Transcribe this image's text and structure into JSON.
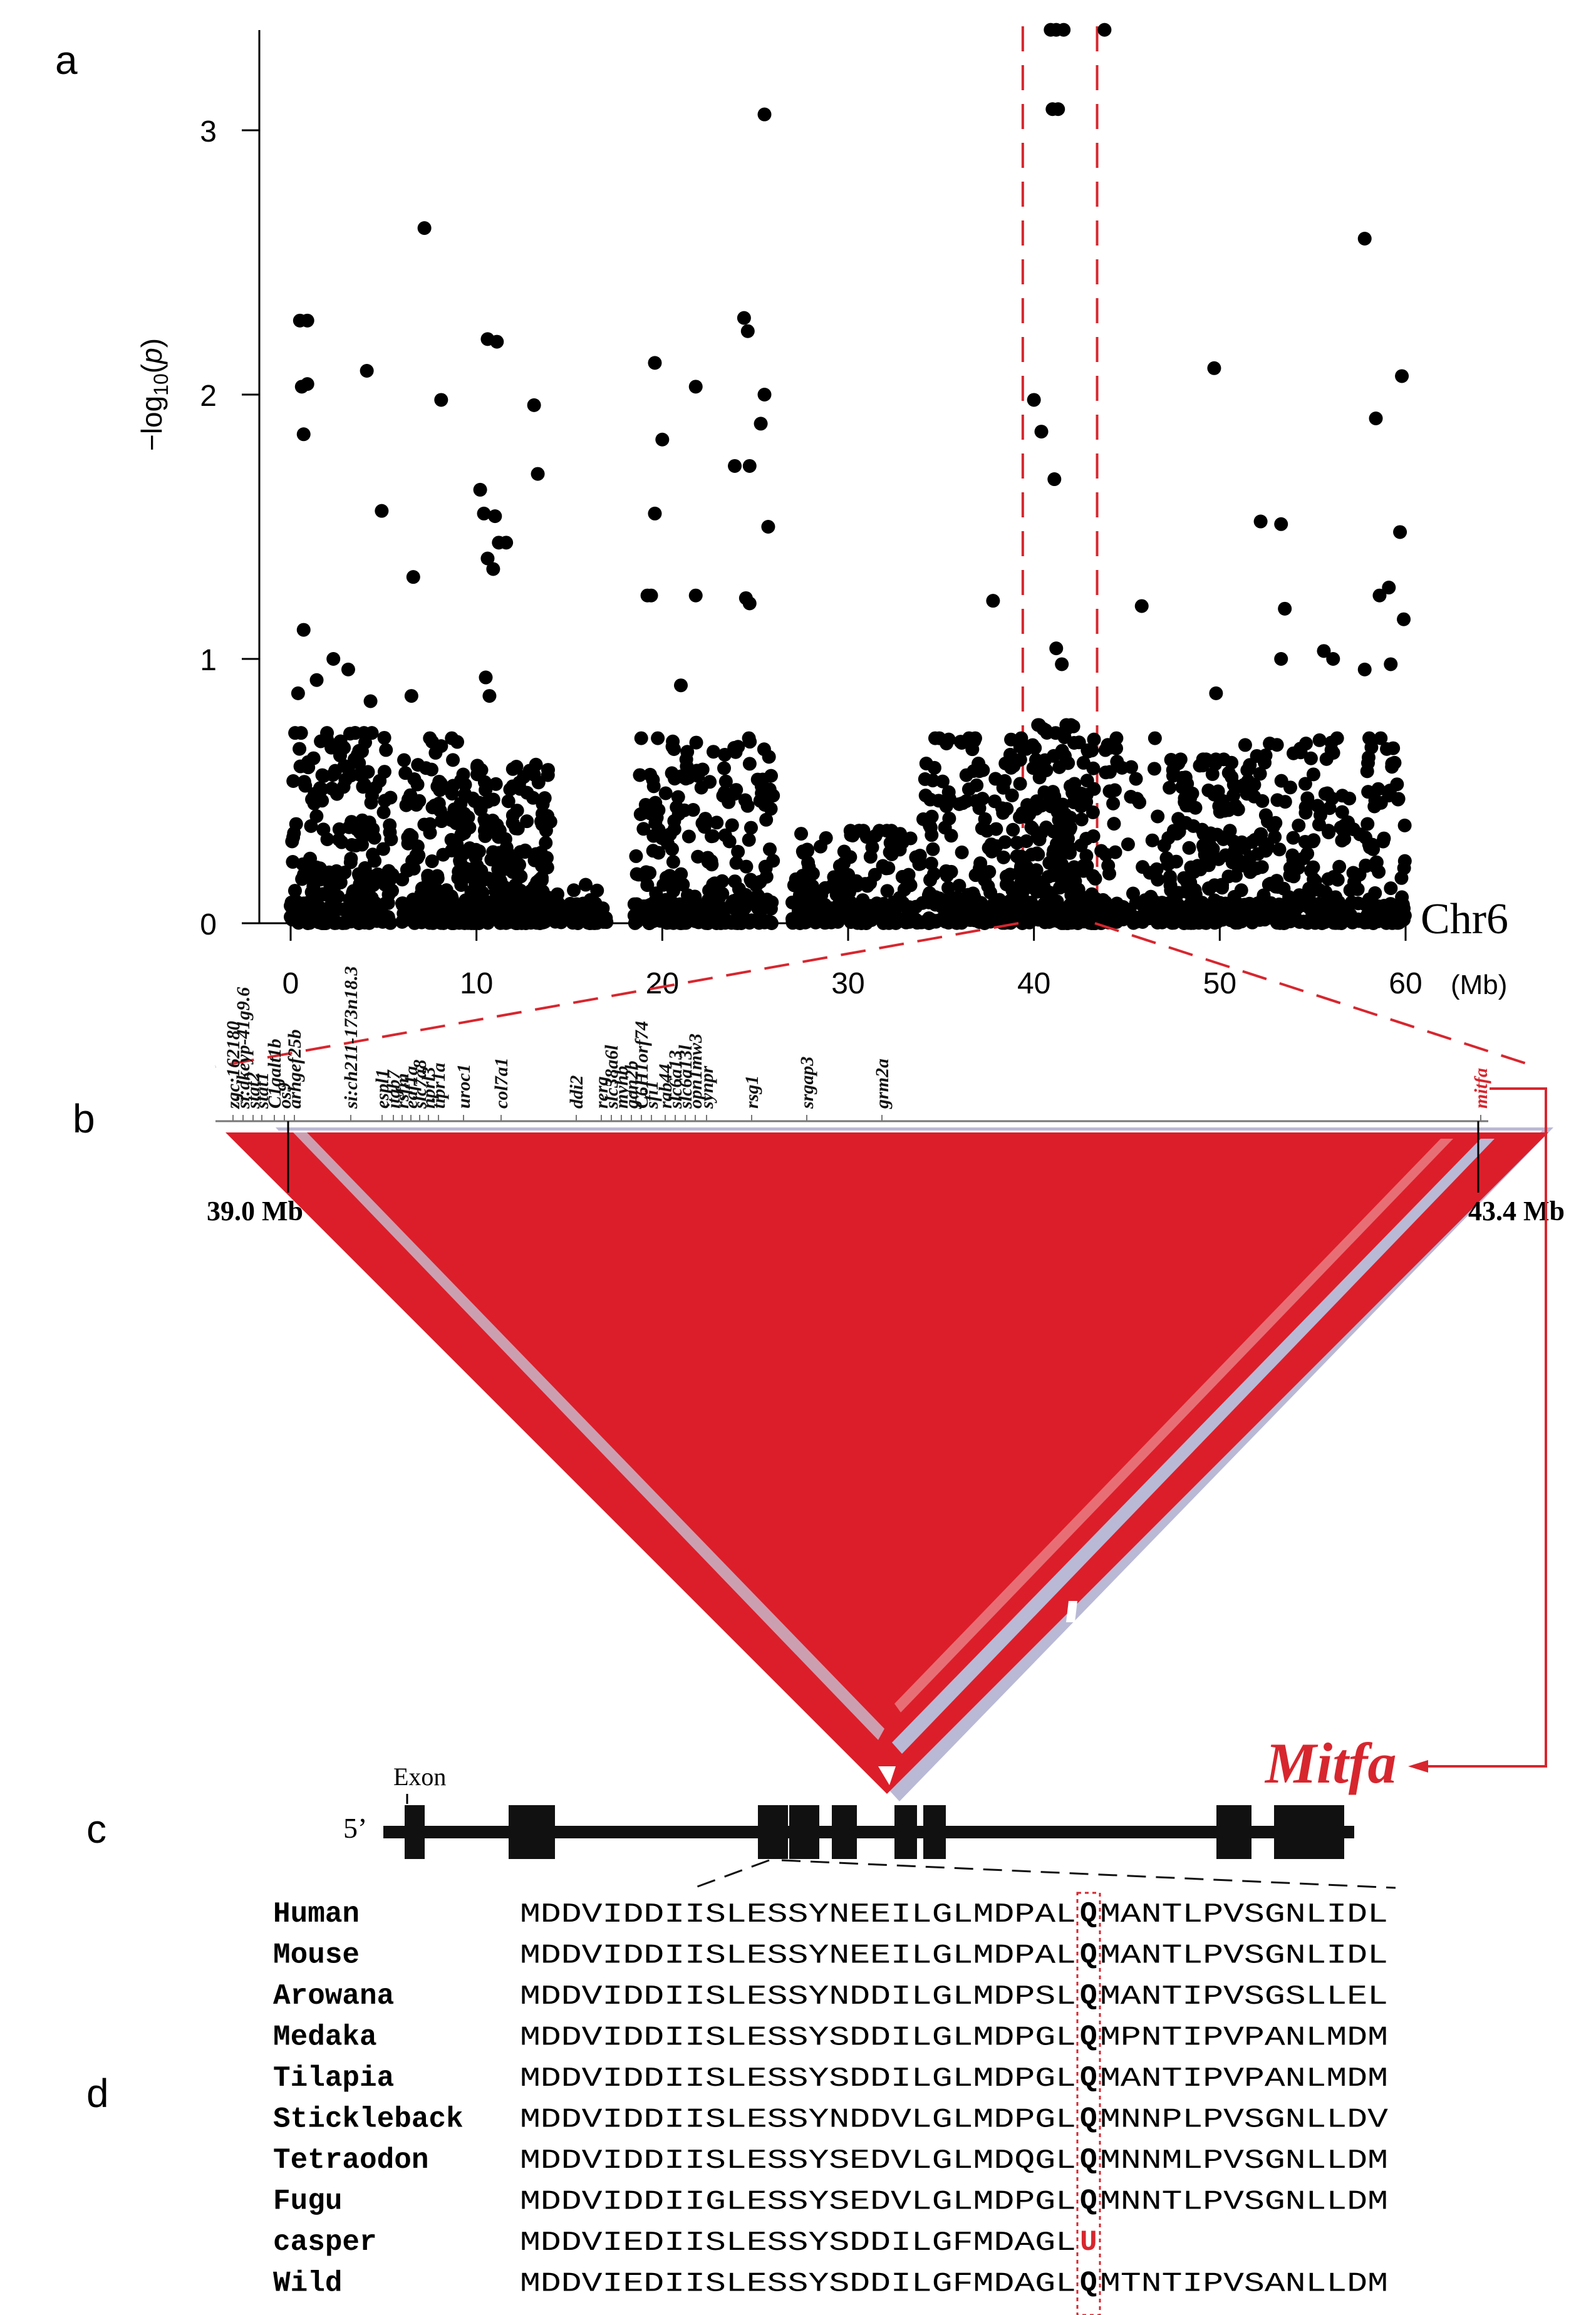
{
  "panels": [
    "a",
    "b",
    "c",
    "d"
  ],
  "panel_a": {
    "chart_data": {
      "type": "scatter",
      "title": "",
      "xlabel": "",
      "ylabel": "-log10(p)",
      "xlim": [
        -1,
        62
      ],
      "ylim": [
        0,
        3.35
      ],
      "x_ticks": [
        0,
        10,
        20,
        30,
        40,
        50,
        60
      ],
      "x_unit": "(Mb)",
      "y_ticks": [
        0,
        1,
        2,
        3
      ],
      "chrom_label": "Chr6",
      "highlight_region": [
        39.4,
        43.4
      ],
      "top_points": [
        [
          0.5,
          2.28
        ],
        [
          0.9,
          2.28
        ],
        [
          0.6,
          2.03
        ],
        [
          0.9,
          2.04
        ],
        [
          0.7,
          1.85
        ],
        [
          4.1,
          2.09
        ],
        [
          7.2,
          2.63
        ],
        [
          8.1,
          1.98
        ],
        [
          10.6,
          2.21
        ],
        [
          11.1,
          2.2
        ],
        [
          13.1,
          1.96
        ],
        [
          13.3,
          1.7
        ],
        [
          4.9,
          1.56
        ],
        [
          6.6,
          1.31
        ],
        [
          10.2,
          1.64
        ],
        [
          10.4,
          1.55
        ],
        [
          11.0,
          1.54
        ],
        [
          11.2,
          1.44
        ],
        [
          11.6,
          1.44
        ],
        [
          10.6,
          1.38
        ],
        [
          10.9,
          1.34
        ],
        [
          0.7,
          1.11
        ],
        [
          19.6,
          2.12
        ],
        [
          21.8,
          2.03
        ],
        [
          20.0,
          1.83
        ],
        [
          19.6,
          1.55
        ],
        [
          24.4,
          2.29
        ],
        [
          24.6,
          2.24
        ],
        [
          25.5,
          2.0
        ],
        [
          25.3,
          1.89
        ],
        [
          23.9,
          1.73
        ],
        [
          24.7,
          1.73
        ],
        [
          25.7,
          1.5
        ],
        [
          21.8,
          1.24
        ],
        [
          24.5,
          1.23
        ],
        [
          24.7,
          1.21
        ],
        [
          25.5,
          3.06
        ],
        [
          19.2,
          1.24
        ],
        [
          19.4,
          1.24
        ],
        [
          40.9,
          3.38
        ],
        [
          41.2,
          3.38
        ],
        [
          41.6,
          3.38
        ],
        [
          43.8,
          3.38
        ],
        [
          41.0,
          3.08
        ],
        [
          41.3,
          3.08
        ],
        [
          40.0,
          1.98
        ],
        [
          40.4,
          1.86
        ],
        [
          41.1,
          1.68
        ],
        [
          37.8,
          1.22
        ],
        [
          41.2,
          1.04
        ],
        [
          41.5,
          0.98
        ],
        [
          57.8,
          2.59
        ],
        [
          59.8,
          2.07
        ],
        [
          58.4,
          1.91
        ],
        [
          49.7,
          2.1
        ],
        [
          52.2,
          1.52
        ],
        [
          53.3,
          1.51
        ],
        [
          53.5,
          1.19
        ],
        [
          53.3,
          1.0
        ],
        [
          45.8,
          1.2
        ],
        [
          59.7,
          1.48
        ],
        [
          59.1,
          1.27
        ],
        [
          58.6,
          1.24
        ],
        [
          59.9,
          1.15
        ],
        [
          49.8,
          0.87
        ],
        [
          55.6,
          1.03
        ],
        [
          56.1,
          1.0
        ],
        [
          57.8,
          0.96
        ],
        [
          59.2,
          0.98
        ],
        [
          3.1,
          0.96
        ],
        [
          2.3,
          1.0
        ],
        [
          0.4,
          0.87
        ],
        [
          1.4,
          0.92
        ],
        [
          4.3,
          0.84
        ],
        [
          6.5,
          0.86
        ],
        [
          10.5,
          0.93
        ],
        [
          10.7,
          0.86
        ],
        [
          21.0,
          0.9
        ]
      ],
      "clusters": [
        {
          "x_range": [
            0,
            5.5
          ],
          "y_max": 0.72,
          "count": 240
        },
        {
          "x_range": [
            6,
            9
          ],
          "y_max": 0.7,
          "count": 120
        },
        {
          "x_range": [
            9,
            14
          ],
          "y_max": 0.6,
          "count": 260
        },
        {
          "x_range": [
            14,
            17
          ],
          "y_max": 0.15,
          "count": 35
        },
        {
          "x_range": [
            18.5,
            26
          ],
          "y_max": 0.7,
          "count": 230
        },
        {
          "x_range": [
            27,
            34
          ],
          "y_max": 0.35,
          "count": 140
        },
        {
          "x_range": [
            34,
            39.5
          ],
          "y_max": 0.7,
          "count": 180
        },
        {
          "x_range": [
            39.5,
            43.4
          ],
          "y_max": 0.75,
          "count": 200
        },
        {
          "x_range": [
            43.4,
            47
          ],
          "y_max": 0.7,
          "count": 60
        },
        {
          "x_range": [
            47,
            51
          ],
          "y_max": 0.62,
          "count": 170
        },
        {
          "x_range": [
            51,
            55
          ],
          "y_max": 0.68,
          "count": 120
        },
        {
          "x_range": [
            55,
            60
          ],
          "y_max": 0.7,
          "count": 150
        }
      ]
    }
  },
  "panel_b": {
    "genes": [
      "zgc:162180",
      "si:dkeyp-41g9.6",
      "stat2",
      "stat1",
      "C1galt1b",
      "os9",
      "arhgef25b",
      "si:ch211-173n18.3",
      "espl1",
      "itgb7",
      "rsfm",
      "eaf1a",
      "slc7a8",
      "nprl3",
      "tipr1a",
      "uroc1",
      "col7a1",
      "ddi2",
      "rerg",
      "slc38a6l",
      "myhb",
      "gan2b",
      "C6H1orf74",
      "sfi1",
      "rab44",
      "slc6a13",
      "slc6a13l",
      "opn1mw3",
      "synpr",
      "rsg1",
      "srgap3",
      "grm2a",
      "mitfa"
    ],
    "left_marker": "39.0 Mb",
    "right_marker": "43.4 Mb",
    "callout": "Mitfa",
    "colors": {
      "ld_high": "#dc1e2a",
      "ld_low": "#b9b9d6",
      "accent": "#d7262e"
    }
  },
  "panel_c": {
    "exon_label": "Exon",
    "five_prime": "5’"
  },
  "panel_d": {
    "rows": [
      {
        "species": "Human",
        "before": "MDDVIDDIISLESSYNEEILGLMDPAL",
        "mark": "Q",
        "after": "MANTLPVSGNLIDL"
      },
      {
        "species": "Mouse",
        "before": "MDDVIDDIISLESSYNEEILGLMDPAL",
        "mark": "Q",
        "after": "MANTLPVSGNLIDL"
      },
      {
        "species": "Arowana",
        "before": "MDDVIDDIISLESSYNDDILGLMDPSL",
        "mark": "Q",
        "after": "MANTIPVSGSLLEL"
      },
      {
        "species": "Medaka",
        "before": "MDDVIDDIISLESSYSDDILGLMDPGL",
        "mark": "Q",
        "after": "MPNTIPVPANLMDM"
      },
      {
        "species": "Tilapia",
        "before": "MDDVIDDIISLESSYSDDILGLMDPGL",
        "mark": "Q",
        "after": "MANTIPVPANLMDM"
      },
      {
        "species": "Stickleback",
        "before": "MDDVIDDIISLESSYNDDVLGLMDPGL",
        "mark": "Q",
        "after": "MNNPLPVSGNLLDV"
      },
      {
        "species": "Tetraodon",
        "before": "MDDVIDDIISLESSYSEDVLGLMDQGL",
        "mark": "Q",
        "after": "MNNMLPVSGNLLDM"
      },
      {
        "species": "Fugu",
        "before": "MDDVIDDIIGLESSYSEDVLGLMDPGL",
        "mark": "Q",
        "after": "MNNTLPVSGNLLDM"
      },
      {
        "species": "casper",
        "before": "MDDVIEDIISLESSYSDDILGFMDAGL",
        "mark": "U",
        "after": ""
      },
      {
        "species": "Wild",
        "before": "MDDVIEDIISLESSYSDDILGFMDAGL",
        "mark": "Q",
        "after": "MTNTIPVSANLLDM"
      }
    ]
  }
}
